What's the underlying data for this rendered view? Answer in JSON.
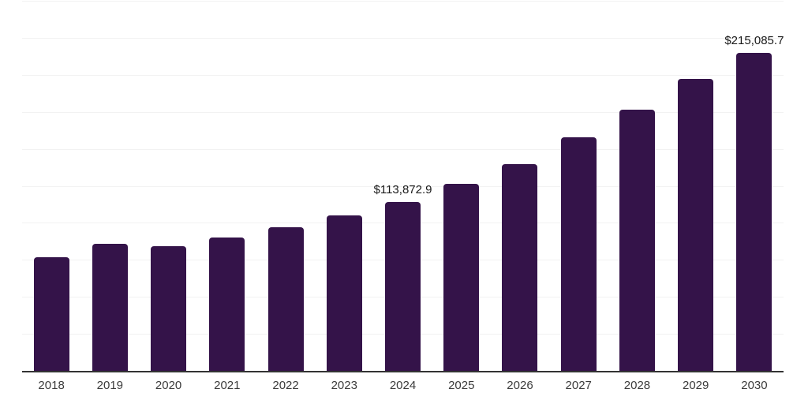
{
  "chart_data": {
    "type": "bar",
    "title": "",
    "xlabel": "",
    "ylabel": "",
    "categories": [
      "2018",
      "2019",
      "2020",
      "2021",
      "2022",
      "2023",
      "2024",
      "2025",
      "2026",
      "2027",
      "2028",
      "2029",
      "2030"
    ],
    "values": [
      76700,
      85750,
      84000,
      90200,
      96800,
      104800,
      113872.9,
      126100,
      139700,
      158000,
      176700,
      197100,
      215085.7
    ],
    "values_note": "2024 and 2030 are labeled on the chart; other values estimated from bar heights against gridlines",
    "ylim": [
      0,
      250000
    ],
    "gridline_step": 25000,
    "grid": true,
    "legend": false,
    "data_labels": [
      {
        "category": "2024",
        "text": "$113,872.9"
      },
      {
        "category": "2030",
        "text": "$215,085.7"
      }
    ],
    "colors": {
      "bar": "#341349",
      "axis_line": "#333333",
      "gridline": "#f2f2f2",
      "data_label_text": "#1a1a1a",
      "tick_label_text": "#3b3b3b",
      "background": "#ffffff"
    }
  }
}
